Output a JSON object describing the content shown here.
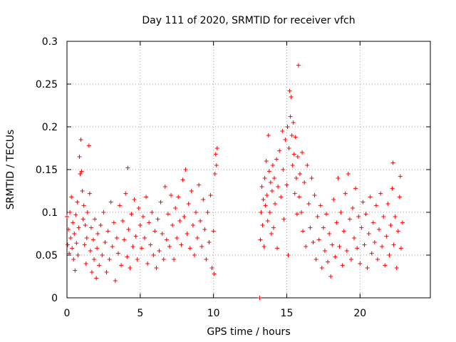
{
  "chart_data": {
    "type": "scatter",
    "title": "Day 111 of 2020, SRMTID for receiver vfch",
    "xlabel": "GPS time / hours",
    "ylabel": "SRMTID / TECUs",
    "xlim": [
      0,
      24.8
    ],
    "ylim": [
      0,
      0.3
    ],
    "xticks": [
      0,
      5,
      10,
      15,
      20
    ],
    "yticks": [
      0,
      0.05,
      0.1,
      0.15,
      0.2,
      0.25,
      0.3
    ],
    "ytick_labels": [
      "0",
      "0.05",
      "0.1",
      "0.15",
      "0.2",
      "0.25",
      "0.3"
    ],
    "grid": true,
    "marker": "+",
    "color": "#ff0000",
    "series": [
      {
        "name": "SRMTID",
        "points": [
          [
            0.0,
            0.095
          ],
          [
            0.05,
            0.062
          ],
          [
            0.1,
            0.08
          ],
          [
            0.15,
            0.052
          ],
          [
            0.2,
            0.1
          ],
          [
            0.25,
            0.07
          ],
          [
            0.3,
            0.118
          ],
          [
            0.35,
            0.058
          ],
          [
            0.4,
            0.088
          ],
          [
            0.45,
            0.045
          ],
          [
            0.5,
            0.075
          ],
          [
            0.55,
            0.032
          ],
          [
            0.6,
            0.097
          ],
          [
            0.65,
            0.064
          ],
          [
            0.7,
            0.112
          ],
          [
            0.75,
            0.05
          ],
          [
            0.8,
            0.082
          ],
          [
            0.85,
            0.165
          ],
          [
            0.9,
            0.145
          ],
          [
            0.95,
            0.185
          ],
          [
            1.0,
            0.148
          ],
          [
            1.05,
            0.125
          ],
          [
            1.1,
            0.092
          ],
          [
            1.15,
            0.108
          ],
          [
            1.2,
            0.062
          ],
          [
            1.25,
            0.085
          ],
          [
            1.3,
            0.04
          ],
          [
            1.35,
            0.07
          ],
          [
            1.4,
            0.1
          ],
          [
            1.5,
            0.178
          ],
          [
            1.55,
            0.122
          ],
          [
            1.6,
            0.055
          ],
          [
            1.65,
            0.082
          ],
          [
            1.7,
            0.03
          ],
          [
            1.8,
            0.068
          ],
          [
            1.85,
            0.045
          ],
          [
            1.9,
            0.092
          ],
          [
            2.0,
            0.023
          ],
          [
            2.05,
            0.058
          ],
          [
            2.1,
            0.075
          ],
          [
            2.2,
            0.038
          ],
          [
            2.3,
            0.085
          ],
          [
            2.4,
            0.05
          ],
          [
            2.5,
            0.1
          ],
          [
            2.6,
            0.065
          ],
          [
            2.7,
            0.03
          ],
          [
            2.8,
            0.078
          ],
          [
            2.9,
            0.045
          ],
          [
            3.0,
            0.112
          ],
          [
            3.1,
            0.06
          ],
          [
            3.2,
            0.088
          ],
          [
            3.3,
            0.02
          ],
          [
            3.4,
            0.07
          ],
          [
            3.5,
            0.052
          ],
          [
            3.6,
            0.108
          ],
          [
            3.7,
            0.038
          ],
          [
            3.8,
            0.09
          ],
          [
            3.9,
            0.068
          ],
          [
            4.0,
            0.122
          ],
          [
            4.1,
            0.048
          ],
          [
            4.15,
            0.152
          ],
          [
            4.2,
            0.08
          ],
          [
            4.3,
            0.035
          ],
          [
            4.4,
            0.098
          ],
          [
            4.5,
            0.06
          ],
          [
            4.6,
            0.115
          ],
          [
            4.7,
            0.072
          ],
          [
            4.8,
            0.045
          ],
          [
            4.9,
            0.105
          ],
          [
            5.0,
            0.085
          ],
          [
            5.1,
            0.058
          ],
          [
            5.2,
            0.095
          ],
          [
            5.3,
            0.07
          ],
          [
            5.4,
            0.118
          ],
          [
            5.5,
            0.04
          ],
          [
            5.6,
            0.088
          ],
          [
            5.7,
            0.062
          ],
          [
            5.8,
            0.1
          ],
          [
            5.9,
            0.05
          ],
          [
            6.0,
            0.078
          ],
          [
            6.1,
            0.035
          ],
          [
            6.2,
            0.092
          ],
          [
            6.3,
            0.055
          ],
          [
            6.4,
            0.112
          ],
          [
            6.5,
            0.075
          ],
          [
            6.6,
            0.045
          ],
          [
            6.7,
            0.13
          ],
          [
            6.8,
            0.068
          ],
          [
            6.9,
            0.098
          ],
          [
            7.0,
            0.06
          ],
          [
            7.1,
            0.12
          ],
          [
            7.2,
            0.085
          ],
          [
            7.3,
            0.045
          ],
          [
            7.4,
            0.105
          ],
          [
            7.5,
            0.07
          ],
          [
            7.6,
            0.118
          ],
          [
            7.7,
            0.09
          ],
          [
            7.8,
            0.062
          ],
          [
            7.9,
            0.138
          ],
          [
            8.0,
            0.095
          ],
          [
            8.1,
            0.15
          ],
          [
            8.2,
            0.075
          ],
          [
            8.3,
            0.11
          ],
          [
            8.4,
            0.058
          ],
          [
            8.5,
            0.125
          ],
          [
            8.6,
            0.085
          ],
          [
            8.7,
            0.05
          ],
          [
            8.8,
            0.1
          ],
          [
            8.9,
            0.07
          ],
          [
            9.0,
            0.132
          ],
          [
            9.1,
            0.09
          ],
          [
            9.2,
            0.06
          ],
          [
            9.3,
            0.115
          ],
          [
            9.4,
            0.08
          ],
          [
            9.5,
            0.045
          ],
          [
            9.6,
            0.1
          ],
          [
            9.7,
            0.065
          ],
          [
            9.8,
            0.12
          ],
          [
            9.9,
            0.035
          ],
          [
            10.0,
            0.078
          ],
          [
            10.05,
            0.028
          ],
          [
            10.1,
            0.145
          ],
          [
            10.15,
            0.168
          ],
          [
            10.2,
            0.155
          ],
          [
            10.25,
            0.175
          ],
          [
            13.15,
            0.0
          ],
          [
            13.2,
            0.068
          ],
          [
            13.25,
            0.1
          ],
          [
            13.3,
            0.13
          ],
          [
            13.35,
            0.085
          ],
          [
            13.4,
            0.115
          ],
          [
            13.45,
            0.06
          ],
          [
            13.5,
            0.14
          ],
          [
            13.55,
            0.108
          ],
          [
            13.6,
            0.16
          ],
          [
            13.65,
            0.12
          ],
          [
            13.7,
            0.09
          ],
          [
            13.75,
            0.19
          ],
          [
            13.8,
            0.148
          ],
          [
            13.85,
            0.1
          ],
          [
            13.9,
            0.135
          ],
          [
            13.95,
            0.075
          ],
          [
            14.0,
            0.125
          ],
          [
            14.05,
            0.155
          ],
          [
            14.1,
            0.082
          ],
          [
            14.15,
            0.14
          ],
          [
            14.2,
            0.11
          ],
          [
            14.3,
            0.162
          ],
          [
            14.35,
            0.058
          ],
          [
            14.4,
            0.13
          ],
          [
            14.5,
            0.172
          ],
          [
            14.6,
            0.118
          ],
          [
            14.7,
            0.195
          ],
          [
            14.75,
            0.15
          ],
          [
            14.8,
            0.092
          ],
          [
            14.9,
            0.185
          ],
          [
            15.0,
            0.132
          ],
          [
            15.05,
            0.2
          ],
          [
            15.1,
            0.05
          ],
          [
            15.15,
            0.175
          ],
          [
            15.2,
            0.242
          ],
          [
            15.25,
            0.212
          ],
          [
            15.3,
            0.235
          ],
          [
            15.35,
            0.19
          ],
          [
            15.4,
            0.155
          ],
          [
            15.45,
            0.205
          ],
          [
            15.5,
            0.168
          ],
          [
            15.55,
            0.122
          ],
          [
            15.6,
            0.188
          ],
          [
            15.65,
            0.14
          ],
          [
            15.7,
            0.098
          ],
          [
            15.75,
            0.165
          ],
          [
            15.8,
            0.272
          ],
          [
            15.85,
            0.118
          ],
          [
            15.9,
            0.145
          ],
          [
            16.0,
            0.1
          ],
          [
            16.05,
            0.17
          ],
          [
            16.1,
            0.078
          ],
          [
            16.2,
            0.135
          ],
          [
            16.3,
            0.06
          ],
          [
            16.4,
            0.155
          ],
          [
            16.5,
            0.11
          ],
          [
            16.6,
            0.082
          ],
          [
            16.7,
            0.14
          ],
          [
            16.8,
            0.065
          ],
          [
            16.9,
            0.12
          ],
          [
            17.0,
            0.045
          ],
          [
            17.1,
            0.095
          ],
          [
            17.2,
            0.068
          ],
          [
            17.3,
            0.108
          ],
          [
            17.4,
            0.035
          ],
          [
            17.5,
            0.082
          ],
          [
            17.6,
            0.055
          ],
          [
            17.7,
            0.098
          ],
          [
            17.8,
            0.042
          ],
          [
            17.9,
            0.075
          ],
          [
            18.0,
            0.025
          ],
          [
            18.1,
            0.062
          ],
          [
            18.2,
            0.115
          ],
          [
            18.3,
            0.048
          ],
          [
            18.4,
            0.088
          ],
          [
            18.5,
            0.14
          ],
          [
            18.6,
            0.06
          ],
          [
            18.7,
            0.1
          ],
          [
            18.8,
            0.038
          ],
          [
            18.9,
            0.078
          ],
          [
            19.0,
            0.122
          ],
          [
            19.1,
            0.055
          ],
          [
            19.2,
            0.145
          ],
          [
            19.3,
            0.092
          ],
          [
            19.4,
            0.045
          ],
          [
            19.5,
            0.105
          ],
          [
            19.6,
            0.07
          ],
          [
            19.7,
            0.128
          ],
          [
            19.8,
            0.058
          ],
          [
            19.9,
            0.095
          ],
          [
            20.0,
            0.04
          ],
          [
            20.1,
            0.082
          ],
          [
            20.2,
            0.112
          ],
          [
            20.3,
            0.062
          ],
          [
            20.4,
            0.098
          ],
          [
            20.5,
            0.035
          ],
          [
            20.6,
            0.075
          ],
          [
            20.7,
            0.118
          ],
          [
            20.8,
            0.052
          ],
          [
            20.9,
            0.088
          ],
          [
            21.0,
            0.065
          ],
          [
            21.1,
            0.108
          ],
          [
            21.2,
            0.045
          ],
          [
            21.3,
            0.08
          ],
          [
            21.4,
            0.122
          ],
          [
            21.5,
            0.06
          ],
          [
            21.6,
            0.095
          ],
          [
            21.7,
            0.038
          ],
          [
            21.8,
            0.072
          ],
          [
            21.9,
            0.11
          ],
          [
            22.0,
            0.05
          ],
          [
            22.1,
            0.085
          ],
          [
            22.2,
            0.128
          ],
          [
            22.25,
            0.158
          ],
          [
            22.3,
            0.062
          ],
          [
            22.4,
            0.095
          ],
          [
            22.5,
            0.035
          ],
          [
            22.6,
            0.078
          ],
          [
            22.7,
            0.118
          ],
          [
            22.75,
            0.142
          ],
          [
            22.8,
            0.058
          ],
          [
            22.9,
            0.088
          ]
        ]
      }
    ]
  }
}
